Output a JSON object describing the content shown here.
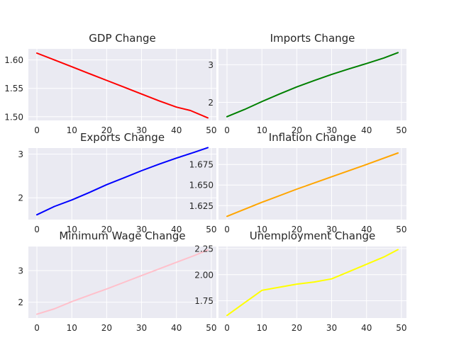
{
  "chart_data": [
    {
      "type": "line",
      "title": "GDP Change",
      "xlabel": "",
      "ylabel": "",
      "x_ticks": [
        "0",
        "10",
        "20",
        "30",
        "40",
        "50"
      ],
      "y_ticks": [
        "1.50",
        "1.55",
        "1.60"
      ],
      "y_tick_values": [
        1.5,
        1.55,
        1.6
      ],
      "xlim": [
        -2.45,
        51.45
      ],
      "ylim": [
        1.4935,
        1.6195
      ],
      "grid": true,
      "color": "#ff0000",
      "x": [
        0,
        5,
        10,
        15,
        20,
        25,
        30,
        35,
        40,
        44,
        49
      ],
      "y": [
        1.612,
        1.6,
        1.588,
        1.576,
        1.564,
        1.552,
        1.54,
        1.528,
        1.517,
        1.511,
        1.498
      ]
    },
    {
      "type": "line",
      "title": "Imports Change",
      "xlabel": "",
      "ylabel": "",
      "x_ticks": [
        "0",
        "10",
        "20",
        "30",
        "40",
        "50"
      ],
      "y_ticks": [
        "2",
        "3"
      ],
      "y_tick_values": [
        2,
        3
      ],
      "xlim": [
        -2.45,
        51.45
      ],
      "ylim": [
        1.52,
        3.42
      ],
      "grid": true,
      "color": "#008000",
      "x": [
        0,
        5,
        10,
        15,
        20,
        25,
        30,
        35,
        40,
        45,
        49
      ],
      "y": [
        1.62,
        1.81,
        2.02,
        2.22,
        2.41,
        2.58,
        2.74,
        2.89,
        3.03,
        3.18,
        3.32
      ]
    },
    {
      "type": "line",
      "title": "Exports Change",
      "xlabel": "",
      "ylabel": "",
      "x_ticks": [
        "0",
        "10",
        "20",
        "30",
        "40",
        "50"
      ],
      "y_ticks": [
        "2",
        "3"
      ],
      "y_tick_values": [
        2,
        3
      ],
      "xlim": [
        -2.45,
        51.45
      ],
      "ylim": [
        1.5,
        3.14
      ],
      "grid": true,
      "color": "#0000ff",
      "x": [
        0,
        5,
        10,
        15,
        20,
        25,
        30,
        35,
        40,
        45,
        49
      ],
      "y": [
        1.61,
        1.8,
        1.95,
        2.12,
        2.3,
        2.46,
        2.62,
        2.77,
        2.91,
        3.04,
        3.15
      ]
    },
    {
      "type": "line",
      "title": "Inflation Change",
      "xlabel": "",
      "ylabel": "",
      "x_ticks": [
        "0",
        "10",
        "20",
        "30",
        "40",
        "50"
      ],
      "y_ticks": [
        "1.625",
        "1.650",
        "1.675"
      ],
      "y_tick_values": [
        1.625,
        1.65,
        1.675
      ],
      "xlim": [
        -2.45,
        51.45
      ],
      "ylim": [
        1.608,
        1.695
      ],
      "grid": true,
      "color": "#ffa500",
      "x": [
        0,
        10,
        20,
        30,
        40,
        49
      ],
      "y": [
        1.612,
        1.629,
        1.645,
        1.66,
        1.675,
        1.689
      ]
    },
    {
      "type": "line",
      "title": "Minimum Wage Change",
      "xlabel": "",
      "ylabel": "",
      "x_ticks": [
        "0",
        "10",
        "20",
        "30",
        "40",
        "50"
      ],
      "y_ticks": [
        "2",
        "3"
      ],
      "y_tick_values": [
        2,
        3
      ],
      "xlim": [
        -2.45,
        51.45
      ],
      "ylim": [
        1.5,
        3.76
      ],
      "grid": true,
      "color": "#ffc0cb",
      "x": [
        0,
        5,
        10,
        15,
        20,
        25,
        30,
        35,
        40,
        45,
        49
      ],
      "y": [
        1.62,
        1.79,
        2.02,
        2.22,
        2.42,
        2.63,
        2.84,
        3.05,
        3.26,
        3.47,
        3.65
      ]
    },
    {
      "type": "line",
      "title": "Unemployment Change",
      "xlabel": "",
      "ylabel": "",
      "x_ticks": [
        "0",
        "10",
        "20",
        "30",
        "40",
        "50"
      ],
      "y_ticks": [
        "1.75",
        "2.00",
        "2.25"
      ],
      "y_tick_values": [
        1.75,
        2.0,
        2.25
      ],
      "xlim": [
        -2.45,
        51.45
      ],
      "ylim": [
        1.585,
        2.27
      ],
      "grid": true,
      "color": "#ffff00",
      "x": [
        0,
        5,
        10,
        15,
        20,
        25,
        30,
        35,
        40,
        45,
        49
      ],
      "y": [
        1.61,
        1.73,
        1.85,
        1.88,
        1.91,
        1.93,
        1.96,
        2.03,
        2.1,
        2.17,
        2.24
      ]
    }
  ]
}
